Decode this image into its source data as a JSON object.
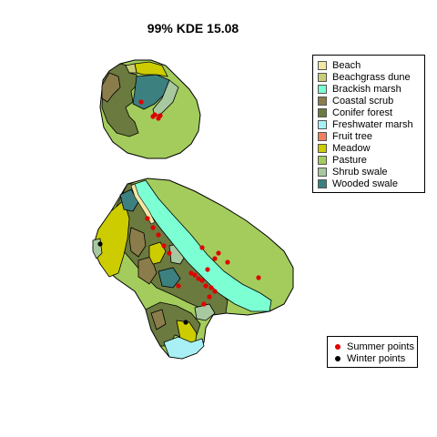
{
  "title": "99% KDE 15.08",
  "colors": {
    "beach": "#f2e6a3",
    "beachgrass_dune": "#c8cc78",
    "brackish_marsh": "#7dffd4",
    "coastal_scrub": "#8b7d4b",
    "conifer_forest": "#6b7a3f",
    "freshwater_marsh": "#a8f0f5",
    "fruit_tree": "#f08060",
    "meadow": "#cccc00",
    "pasture": "#a3cc5c",
    "shrub_swale": "#a8c8a0",
    "wooded_swale": "#3d8080",
    "summer_point": "#e00000",
    "winter_point": "#000000"
  },
  "legend": {
    "habitats": [
      {
        "label": "Beach",
        "color": "#f2e6a3"
      },
      {
        "label": "Beachgrass dune",
        "color": "#c8cc78"
      },
      {
        "label": "Brackish marsh",
        "color": "#7dffd4"
      },
      {
        "label": "Coastal scrub",
        "color": "#8b7d4b"
      },
      {
        "label": "Conifer forest",
        "color": "#6b7a3f"
      },
      {
        "label": "Freshwater marsh",
        "color": "#a8f0f5"
      },
      {
        "label": "Fruit tree",
        "color": "#f08060"
      },
      {
        "label": "Meadow",
        "color": "#cccc00"
      },
      {
        "label": "Pasture",
        "color": "#a3cc5c"
      },
      {
        "label": "Shrub swale",
        "color": "#a8c8a0"
      },
      {
        "label": "Wooded swale",
        "color": "#3d8080"
      }
    ],
    "points": [
      {
        "label": "Summer points",
        "color": "#e00000"
      },
      {
        "label": "Winter points",
        "color": "#000000"
      }
    ]
  }
}
